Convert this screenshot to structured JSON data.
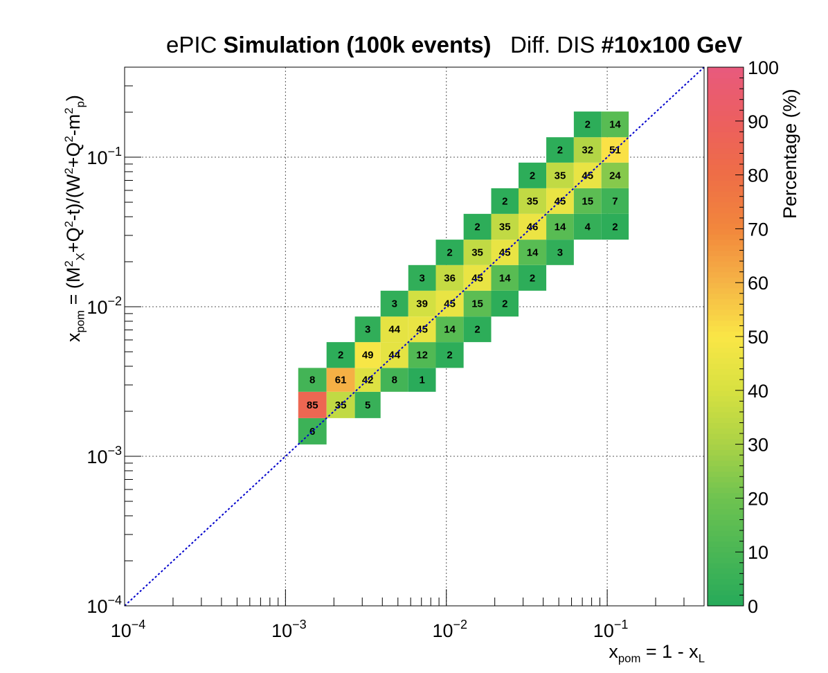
{
  "title": {
    "prefix": "ePIC",
    "bold1": "Simulation (100k events)",
    "middle": "Diff. DIS",
    "bold2": "#10x100 GeV"
  },
  "axes": {
    "x_label_parts": {
      "a": "x",
      "a_sub": "pom",
      "b": " = 1 - x",
      "b_sub": "L"
    },
    "y_label_parts": {
      "a": "x",
      "a_sub": "pom",
      "b": " = (M",
      "b_sup": "2",
      "b_sub": "X",
      "c": "+Q",
      "c_sup": "2",
      "d": "-t)/(W",
      "d_sup": "2",
      "e": "+Q",
      "e_sup": "2",
      "f": "-m",
      "f_sup": "2",
      "f_sub": "p",
      "g": ")"
    },
    "z_label": "Percentage (%)"
  },
  "chart_data": {
    "type": "heatmap",
    "x_scale": "log",
    "y_scale": "log",
    "xlim": [
      0.0001,
      0.4
    ],
    "ylim": [
      0.0001,
      0.4
    ],
    "zlim": [
      0,
      100
    ],
    "x_tick_labels": [
      "10^-4",
      "10^-3",
      "10^-2",
      "10^-1"
    ],
    "y_tick_labels": [
      "10^-4",
      "10^-3",
      "10^-2",
      "10^-1"
    ],
    "z_tick_labels": [
      "0",
      "10",
      "20",
      "30",
      "40",
      "50",
      "60",
      "70",
      "80",
      "90",
      "100"
    ],
    "grid": true,
    "diagonal_line": {
      "color": "#0000cc",
      "style": "dotted"
    },
    "bin_edges": [
      0.0012,
      0.0018,
      0.0027,
      0.0039,
      0.0058,
      0.0086,
      0.0128,
      0.019,
      0.0281,
      0.0418,
      0.062,
      0.092,
      0.136,
      0.202,
      0.3
    ],
    "cells": [
      {
        "col": 0,
        "row": 0,
        "value": 6
      },
      {
        "col": 0,
        "row": 1,
        "value": 85
      },
      {
        "col": 1,
        "row": 1,
        "value": 35
      },
      {
        "col": 2,
        "row": 1,
        "value": 5
      },
      {
        "col": 0,
        "row": 2,
        "value": 8
      },
      {
        "col": 1,
        "row": 2,
        "value": 61
      },
      {
        "col": 2,
        "row": 2,
        "value": 42
      },
      {
        "col": 3,
        "row": 2,
        "value": 8
      },
      {
        "col": 4,
        "row": 2,
        "value": 1
      },
      {
        "col": 1,
        "row": 3,
        "value": 2
      },
      {
        "col": 2,
        "row": 3,
        "value": 49
      },
      {
        "col": 3,
        "row": 3,
        "value": 44
      },
      {
        "col": 4,
        "row": 3,
        "value": 12
      },
      {
        "col": 5,
        "row": 3,
        "value": 2
      },
      {
        "col": 2,
        "row": 4,
        "value": 3
      },
      {
        "col": 3,
        "row": 4,
        "value": 44
      },
      {
        "col": 4,
        "row": 4,
        "value": 45
      },
      {
        "col": 5,
        "row": 4,
        "value": 14
      },
      {
        "col": 6,
        "row": 4,
        "value": 2
      },
      {
        "col": 3,
        "row": 5,
        "value": 3
      },
      {
        "col": 4,
        "row": 5,
        "value": 39
      },
      {
        "col": 5,
        "row": 5,
        "value": 45
      },
      {
        "col": 6,
        "row": 5,
        "value": 15
      },
      {
        "col": 7,
        "row": 5,
        "value": 2
      },
      {
        "col": 4,
        "row": 6,
        "value": 3
      },
      {
        "col": 5,
        "row": 6,
        "value": 36
      },
      {
        "col": 6,
        "row": 6,
        "value": 45
      },
      {
        "col": 7,
        "row": 6,
        "value": 14
      },
      {
        "col": 8,
        "row": 6,
        "value": 2
      },
      {
        "col": 5,
        "row": 7,
        "value": 2
      },
      {
        "col": 6,
        "row": 7,
        "value": 35
      },
      {
        "col": 7,
        "row": 7,
        "value": 45
      },
      {
        "col": 8,
        "row": 7,
        "value": 14
      },
      {
        "col": 9,
        "row": 7,
        "value": 3
      },
      {
        "col": 6,
        "row": 8,
        "value": 2
      },
      {
        "col": 7,
        "row": 8,
        "value": 35
      },
      {
        "col": 8,
        "row": 8,
        "value": 46
      },
      {
        "col": 9,
        "row": 8,
        "value": 14
      },
      {
        "col": 10,
        "row": 8,
        "value": 4
      },
      {
        "col": 11,
        "row": 8,
        "value": 2
      },
      {
        "col": 7,
        "row": 9,
        "value": 2
      },
      {
        "col": 8,
        "row": 9,
        "value": 35
      },
      {
        "col": 9,
        "row": 9,
        "value": 45
      },
      {
        "col": 10,
        "row": 9,
        "value": 15
      },
      {
        "col": 11,
        "row": 9,
        "value": 7
      },
      {
        "col": 8,
        "row": 10,
        "value": 2
      },
      {
        "col": 9,
        "row": 10,
        "value": 35
      },
      {
        "col": 10,
        "row": 10,
        "value": 45
      },
      {
        "col": 11,
        "row": 10,
        "value": 24
      },
      {
        "col": 9,
        "row": 11,
        "value": 2
      },
      {
        "col": 10,
        "row": 11,
        "value": 32
      },
      {
        "col": 11,
        "row": 11,
        "value": 51
      },
      {
        "col": 10,
        "row": 12,
        "value": 2
      },
      {
        "col": 11,
        "row": 12,
        "value": 14
      }
    ]
  }
}
